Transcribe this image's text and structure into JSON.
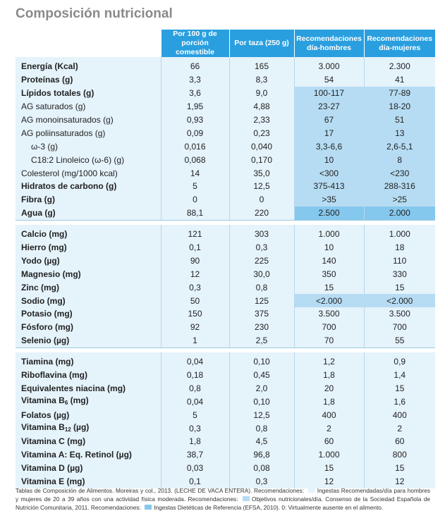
{
  "title": "Composición nutricional",
  "colors": {
    "header": "#2a9fdf",
    "row_bg": "#e5f3fb",
    "objetivos": "#b6dcf3",
    "ingestas": "#85c8ee"
  },
  "headers": [
    "Por 100 g de porción comestible",
    "Por taza (250 g)",
    "Recomendaciones día-hombres",
    "Recomendaciones día-mujeres"
  ],
  "groups": [
    {
      "rows": [
        {
          "label": "Energía (Kcal)",
          "bold": true,
          "v": [
            "66",
            "165",
            "3.000",
            "2.300"
          ],
          "hl": [
            "",
            ""
          ]
        },
        {
          "label": "Proteínas (g)",
          "bold": true,
          "v": [
            "3,3",
            "8,3",
            "54",
            "41"
          ],
          "hl": [
            "",
            ""
          ]
        },
        {
          "label": "Lípidos totales (g)",
          "bold": true,
          "v": [
            "3,6",
            "9,0",
            "100-117",
            "77-89"
          ],
          "hl": [
            "obj",
            "obj"
          ]
        },
        {
          "label": "AG saturados (g)",
          "v": [
            "1,95",
            "4,88",
            "23-27",
            "18-20"
          ],
          "hl": [
            "obj",
            "obj"
          ]
        },
        {
          "label": "AG monoinsaturados (g)",
          "v": [
            "0,93",
            "2,33",
            "67",
            "51"
          ],
          "hl": [
            "obj",
            "obj"
          ]
        },
        {
          "label": "AG poliinsaturados (g)",
          "v": [
            "0,09",
            "0,23",
            "17",
            "13"
          ],
          "hl": [
            "obj",
            "obj"
          ]
        },
        {
          "label": "ω-3 (g)",
          "indent": true,
          "v": [
            "0,016",
            "0,040",
            "3,3-6,6",
            "2,6-5,1"
          ],
          "hl": [
            "obj",
            "obj"
          ]
        },
        {
          "label": "C18:2 Linoleico (ω-6) (g)",
          "indent": true,
          "v": [
            "0,068",
            "0,170",
            "10",
            "8"
          ],
          "hl": [
            "obj",
            "obj"
          ]
        },
        {
          "label": "Colesterol (mg/1000 kcal)",
          "v": [
            "14",
            "35,0",
            "<300",
            "<230"
          ],
          "hl": [
            "obj",
            "obj"
          ]
        },
        {
          "label": "Hidratos de carbono (g)",
          "bold": true,
          "v": [
            "5",
            "12,5",
            "375-413",
            "288-316"
          ],
          "hl": [
            "obj",
            "obj"
          ]
        },
        {
          "label": "Fibra (g)",
          "bold": true,
          "v": [
            "0",
            "0",
            ">35",
            ">25"
          ],
          "hl": [
            "obj",
            "obj"
          ]
        },
        {
          "label": "Agua (g)",
          "bold": true,
          "v": [
            "88,1",
            "220",
            "2.500",
            "2.000"
          ],
          "hl": [
            "ing",
            "ing"
          ]
        }
      ]
    },
    {
      "rows": [
        {
          "label": "Calcio (mg)",
          "bold": true,
          "v": [
            "121",
            "303",
            "1.000",
            "1.000"
          ],
          "hl": [
            "",
            ""
          ]
        },
        {
          "label": "Hierro (mg)",
          "bold": true,
          "v": [
            "0,1",
            "0,3",
            "10",
            "18"
          ],
          "hl": [
            "",
            ""
          ]
        },
        {
          "label": "Yodo (µg)",
          "bold": true,
          "v": [
            "90",
            "225",
            "140",
            "110"
          ],
          "hl": [
            "",
            ""
          ]
        },
        {
          "label": "Magnesio (mg)",
          "bold": true,
          "v": [
            "12",
            "30,0",
            "350",
            "330"
          ],
          "hl": [
            "",
            ""
          ]
        },
        {
          "label": "Zinc (mg)",
          "bold": true,
          "v": [
            "0,3",
            "0,8",
            "15",
            "15"
          ],
          "hl": [
            "",
            ""
          ]
        },
        {
          "label": "Sodio (mg)",
          "bold": true,
          "v": [
            "50",
            "125",
            "<2.000",
            "<2.000"
          ],
          "hl": [
            "obj",
            "obj"
          ]
        },
        {
          "label": "Potasio (mg)",
          "bold": true,
          "v": [
            "150",
            "375",
            "3.500",
            "3.500"
          ],
          "hl": [
            "",
            ""
          ]
        },
        {
          "label": "Fósforo (mg)",
          "bold": true,
          "v": [
            "92",
            "230",
            "700",
            "700"
          ],
          "hl": [
            "",
            ""
          ]
        },
        {
          "label": "Selenio (µg)",
          "bold": true,
          "v": [
            "1",
            "2,5",
            "70",
            "55"
          ],
          "hl": [
            "",
            ""
          ]
        }
      ]
    },
    {
      "rows": [
        {
          "label": "Tiamina (mg)",
          "bold": true,
          "v": [
            "0,04",
            "0,10",
            "1,2",
            "0,9"
          ],
          "hl": [
            "",
            ""
          ]
        },
        {
          "label": "Riboflavina (mg)",
          "bold": true,
          "v": [
            "0,18",
            "0,45",
            "1,8",
            "1,4"
          ],
          "hl": [
            "",
            ""
          ]
        },
        {
          "label": "Equivalentes niacina (mg)",
          "bold": true,
          "v": [
            "0,8",
            "2,0",
            "20",
            "15"
          ],
          "hl": [
            "",
            ""
          ]
        },
        {
          "label": "Vitamina B",
          "sub": "6",
          "suffix": " (mg)",
          "bold": true,
          "v": [
            "0,04",
            "0,10",
            "1,8",
            "1,6"
          ],
          "hl": [
            "",
            ""
          ]
        },
        {
          "label": "Folatos (µg)",
          "bold": true,
          "v": [
            "5",
            "12,5",
            "400",
            "400"
          ],
          "hl": [
            "",
            ""
          ]
        },
        {
          "label": "Vitamina B",
          "sub": "12",
          "suffix": " (µg)",
          "bold": true,
          "v": [
            "0,3",
            "0,8",
            "2",
            "2"
          ],
          "hl": [
            "",
            ""
          ]
        },
        {
          "label": "Vitamina C (mg)",
          "bold": true,
          "v": [
            "1,8",
            "4,5",
            "60",
            "60"
          ],
          "hl": [
            "",
            ""
          ]
        },
        {
          "label": "Vitamina A: Eq. Retinol (µg)",
          "bold": true,
          "v": [
            "38,7",
            "96,8",
            "1.000",
            "800"
          ],
          "hl": [
            "",
            ""
          ]
        },
        {
          "label": "Vitamina D (µg)",
          "bold": true,
          "v": [
            "0,03",
            "0,08",
            "15",
            "15"
          ],
          "hl": [
            "",
            ""
          ]
        },
        {
          "label": "Vitamina E (mg)",
          "bold": true,
          "v": [
            "0,1",
            "0,3",
            "12",
            "12"
          ],
          "hl": [
            "",
            ""
          ]
        }
      ]
    }
  ],
  "footnote": {
    "part1": "Tablas de Composición de Alimentos. Moreiras y col., 2013. (LECHE DE VACA ENTERA). Recomendaciones:",
    "part2": "Ingestas Recomendadas/día para hombres y mujeres de 20 a 39 años con una actividad física moderada. Recomendaciones:",
    "part3": "Objetivos nutricionales/día. Consenso de la Sociedad Española de Nutrición Comunitaria, 2011. Recomendaciones:",
    "part4": "Ingestas Dietéticas de Referencia (EFSA, 2010). 0: Virtualmente ausente en el alimento."
  }
}
